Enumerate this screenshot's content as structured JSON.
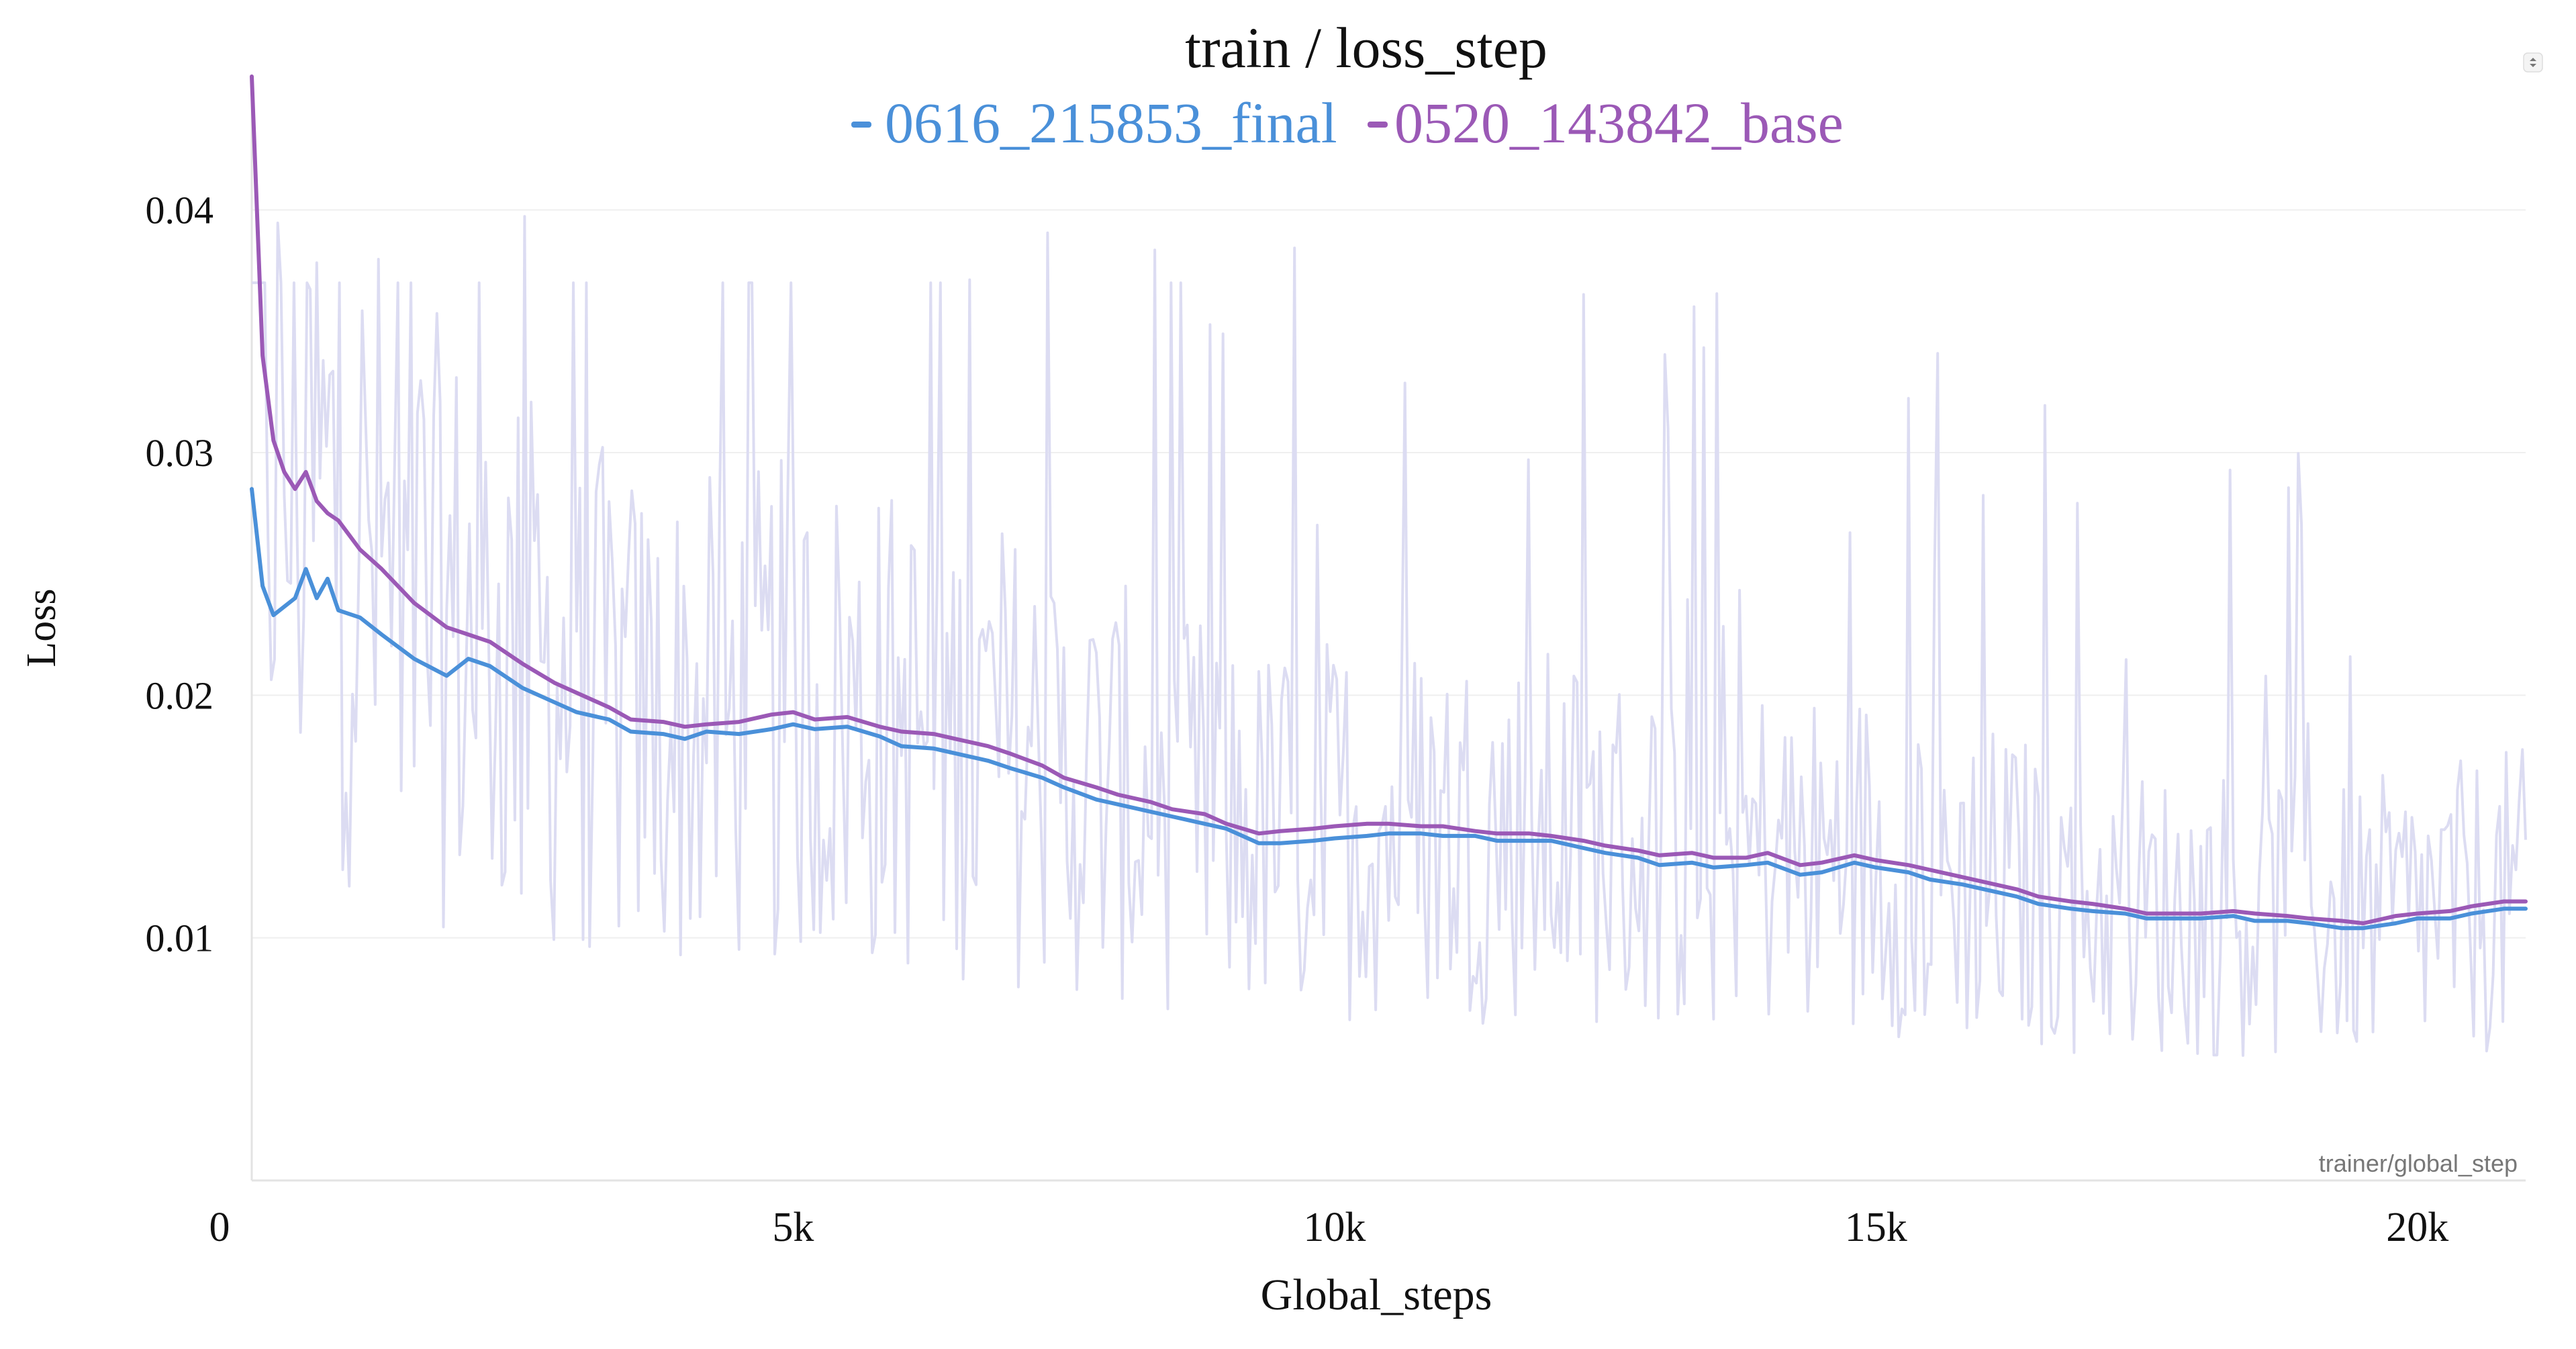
{
  "chart_data": {
    "type": "line",
    "title": "train / loss_step",
    "xlabel": "Global_steps",
    "ylabel": "Loss",
    "x_axis_name": "trainer/global_step",
    "xlim": [
      0,
      21000
    ],
    "ylim": [
      0,
      0.045
    ],
    "x_ticks": [
      0,
      5000,
      10000,
      15000,
      20000
    ],
    "x_tick_labels": [
      "0",
      "5k",
      "10k",
      "15k",
      "20k"
    ],
    "y_ticks": [
      0.01,
      0.02,
      0.03,
      0.04
    ],
    "y_tick_labels": [
      "0.01",
      "0.02",
      "0.03",
      "0.04"
    ],
    "grid": true,
    "legend_position": "top-center",
    "raw_color": "#dcdcf2",
    "series": [
      {
        "name": "0616_215853_final",
        "color": "#4a90d9",
        "x": [
          0,
          100,
          200,
          400,
          500,
          600,
          700,
          800,
          1000,
          1200,
          1500,
          1800,
          2000,
          2200,
          2500,
          2800,
          3000,
          3300,
          3500,
          3800,
          4000,
          4200,
          4500,
          4800,
          5000,
          5200,
          5500,
          5800,
          6000,
          6300,
          6500,
          6800,
          7000,
          7300,
          7500,
          7800,
          8000,
          8300,
          8500,
          8800,
          9000,
          9300,
          9500,
          9800,
          10000,
          10300,
          10500,
          10800,
          11000,
          11300,
          11500,
          11800,
          12000,
          12300,
          12500,
          12800,
          13000,
          13300,
          13500,
          13800,
          14000,
          14300,
          14500,
          14800,
          15000,
          15300,
          15500,
          15800,
          16000,
          16300,
          16500,
          16800,
          17000,
          17300,
          17500,
          17800,
          18000,
          18300,
          18500,
          18800,
          19000,
          19300,
          19500,
          19800,
          20000,
          20300,
          20500,
          20800,
          21000
        ],
        "y": [
          0.0285,
          0.0245,
          0.0233,
          0.024,
          0.0252,
          0.024,
          0.0248,
          0.0235,
          0.0232,
          0.0225,
          0.0215,
          0.0208,
          0.0215,
          0.0212,
          0.0203,
          0.0197,
          0.0193,
          0.019,
          0.0185,
          0.0184,
          0.0182,
          0.0185,
          0.0184,
          0.0186,
          0.0188,
          0.0186,
          0.0187,
          0.0183,
          0.0179,
          0.0178,
          0.0176,
          0.0173,
          0.017,
          0.0166,
          0.0162,
          0.0157,
          0.0155,
          0.0152,
          0.015,
          0.0147,
          0.0145,
          0.0139,
          0.0139,
          0.014,
          0.0141,
          0.0142,
          0.0143,
          0.0143,
          0.0142,
          0.0142,
          0.014,
          0.014,
          0.014,
          0.0137,
          0.0135,
          0.0133,
          0.013,
          0.0131,
          0.0129,
          0.013,
          0.0131,
          0.0126,
          0.0127,
          0.0131,
          0.0129,
          0.0127,
          0.0124,
          0.0122,
          0.012,
          0.0117,
          0.0114,
          0.0112,
          0.0111,
          0.011,
          0.0108,
          0.0108,
          0.0108,
          0.0109,
          0.0107,
          0.0107,
          0.0106,
          0.0104,
          0.0104,
          0.0106,
          0.0108,
          0.0108,
          0.011,
          0.0112,
          0.0112
        ]
      },
      {
        "name": "0520_143842_base",
        "color": "#9b59b6",
        "x": [
          0,
          100,
          200,
          300,
          400,
          500,
          600,
          700,
          800,
          1000,
          1200,
          1500,
          1800,
          2000,
          2200,
          2500,
          2800,
          3000,
          3300,
          3500,
          3800,
          4000,
          4200,
          4500,
          4800,
          5000,
          5200,
          5500,
          5800,
          6000,
          6300,
          6500,
          6800,
          7000,
          7300,
          7500,
          7800,
          8000,
          8300,
          8500,
          8800,
          9000,
          9300,
          9500,
          9800,
          10000,
          10300,
          10500,
          10800,
          11000,
          11300,
          11500,
          11800,
          12000,
          12300,
          12500,
          12800,
          13000,
          13300,
          13500,
          13800,
          14000,
          14300,
          14500,
          14800,
          15000,
          15300,
          15500,
          15800,
          16000,
          16300,
          16500,
          16800,
          17000,
          17300,
          17500,
          17800,
          18000,
          18300,
          18500,
          18800,
          19000,
          19300,
          19500,
          19800,
          20000,
          20300,
          20500,
          20800,
          21000
        ],
        "y": [
          0.0455,
          0.034,
          0.0305,
          0.0292,
          0.0285,
          0.0292,
          0.028,
          0.0275,
          0.0272,
          0.026,
          0.0252,
          0.0238,
          0.0228,
          0.0225,
          0.0222,
          0.0213,
          0.0205,
          0.0201,
          0.0195,
          0.019,
          0.0189,
          0.0187,
          0.0188,
          0.0189,
          0.0192,
          0.0193,
          0.019,
          0.0191,
          0.0187,
          0.0185,
          0.0184,
          0.0182,
          0.0179,
          0.0176,
          0.0171,
          0.0166,
          0.0162,
          0.0159,
          0.0156,
          0.0153,
          0.0151,
          0.0147,
          0.0143,
          0.0144,
          0.0145,
          0.0146,
          0.0147,
          0.0147,
          0.0146,
          0.0146,
          0.0144,
          0.0143,
          0.0143,
          0.0142,
          0.014,
          0.0138,
          0.0136,
          0.0134,
          0.0135,
          0.0133,
          0.0133,
          0.0135,
          0.013,
          0.0131,
          0.0134,
          0.0132,
          0.013,
          0.0128,
          0.0125,
          0.0123,
          0.012,
          0.0117,
          0.0115,
          0.0114,
          0.0112,
          0.011,
          0.011,
          0.011,
          0.0111,
          0.011,
          0.0109,
          0.0108,
          0.0107,
          0.0106,
          0.0109,
          0.011,
          0.0111,
          0.0113,
          0.0115,
          0.0115
        ]
      }
    ]
  },
  "icons": {
    "menu": "chevron-updown-icon"
  }
}
